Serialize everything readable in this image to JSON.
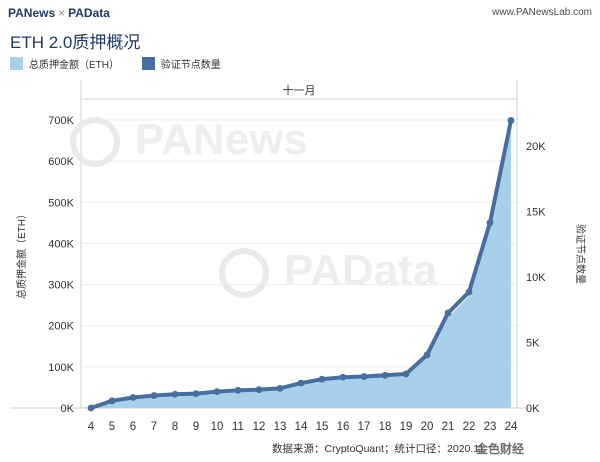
{
  "header": {
    "logo_left": "PANews",
    "logo_sep": "×",
    "logo_right": "PAData",
    "site": "www.PANewsLab.com"
  },
  "title": "ETH 2.0质押概况",
  "watermarks": {
    "upper": "PANews",
    "lower": "PAData"
  },
  "source": "数据来源：CryptoQuant；统计口径：2020.11",
  "corner_logo": "金色财经",
  "colors": {
    "area": "#a9d0eb",
    "line": "#466f9f",
    "title": "#1f3b63"
  },
  "chart_data": {
    "type": "area",
    "period_label": "十一月",
    "x": [
      "4",
      "5",
      "6",
      "7",
      "8",
      "9",
      "10",
      "11",
      "12",
      "13",
      "14",
      "15",
      "16",
      "17",
      "18",
      "19",
      "20",
      "21",
      "22",
      "23",
      "24"
    ],
    "series": [
      {
        "name": "总质押金额（ETH）",
        "type": "area",
        "axis": "left",
        "values": [
          0,
          17000,
          24000,
          28000,
          31000,
          33000,
          36000,
          40000,
          42000,
          45000,
          58000,
          67000,
          71000,
          73000,
          76000,
          79000,
          122000,
          220000,
          272000,
          445000,
          700000
        ]
      },
      {
        "name": "验证节点数量",
        "type": "line",
        "axis": "right",
        "values": [
          0,
          550,
          800,
          950,
          1050,
          1100,
          1250,
          1350,
          1400,
          1500,
          1900,
          2200,
          2350,
          2400,
          2500,
          2600,
          4050,
          7250,
          8850,
          14150,
          21950
        ]
      }
    ],
    "y_left": {
      "label": "总质押金额（ETH）",
      "ticks": [
        "0K",
        "100K",
        "200K",
        "300K",
        "400K",
        "500K",
        "600K",
        "700K"
      ],
      "ylim": [
        0,
        700000
      ]
    },
    "y_right": {
      "label": "验证节点数量",
      "ticks": [
        "0K",
        "5K",
        "10K",
        "15K",
        "20K"
      ],
      "ylim": [
        0,
        21950
      ]
    },
    "legend_position": "top-left",
    "grid": true
  }
}
